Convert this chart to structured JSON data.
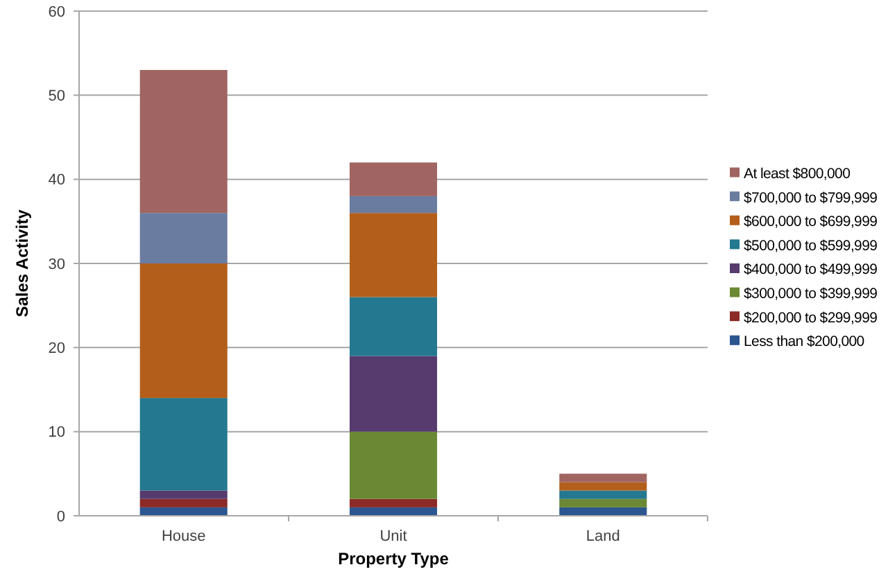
{
  "chart_data": {
    "type": "bar",
    "stacked": true,
    "xlabel": "Property Type",
    "ylabel": "Sales Activity",
    "categories": [
      "House",
      "Unit",
      "Land"
    ],
    "series": [
      {
        "name": "Less than $200,000",
        "color": "#2b5690",
        "values": [
          1,
          1,
          1
        ]
      },
      {
        "name": "$200,000 to $299,999",
        "color": "#8c2a27",
        "values": [
          1,
          1,
          0
        ]
      },
      {
        "name": "$300,000 to $399,999",
        "color": "#6b8934",
        "values": [
          0,
          8,
          1
        ]
      },
      {
        "name": "$400,000 to $499,999",
        "color": "#573b6e",
        "values": [
          1,
          9,
          0
        ]
      },
      {
        "name": "$500,000 to $599,999",
        "color": "#24788f",
        "values": [
          11,
          7,
          1
        ]
      },
      {
        "name": "$600,000 to $699,999",
        "color": "#b35f1b",
        "values": [
          16,
          10,
          1
        ]
      },
      {
        "name": "$700,000 to $799,999",
        "color": "#6a7ca0",
        "values": [
          6,
          2,
          0
        ]
      },
      {
        "name": "At least $800,000",
        "color": "#a06562",
        "values": [
          17,
          4,
          1
        ]
      }
    ],
    "ylim": [
      0,
      60
    ],
    "yticks": [
      0,
      10,
      20,
      30,
      40,
      50,
      60
    ],
    "grid": "y",
    "legend": "right"
  }
}
